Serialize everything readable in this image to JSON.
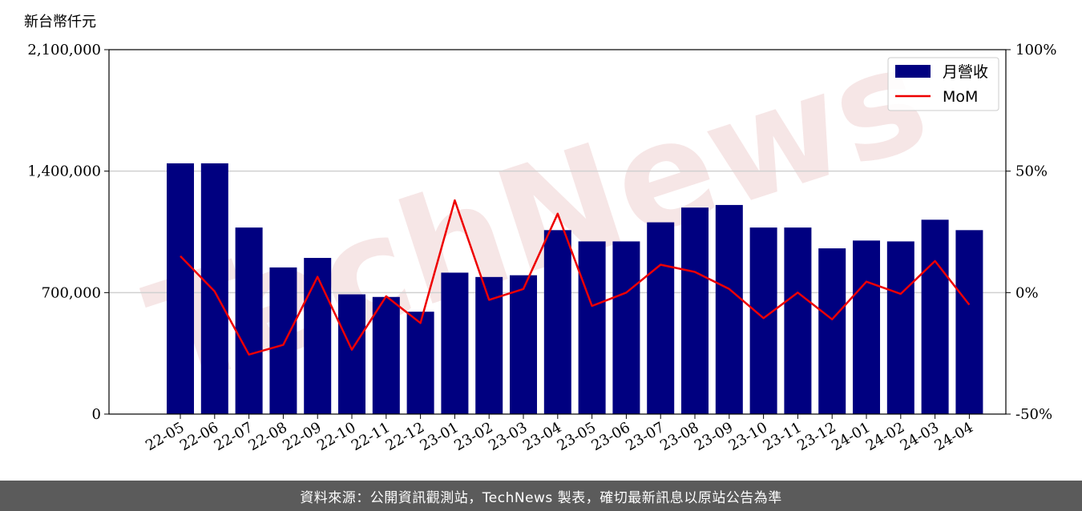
{
  "unit_label": "新台幣仟元",
  "footer": {
    "text": "資料來源：公開資訊觀測站，TechNews 製表，確切最新訊息以原站公告為準"
  },
  "watermark": "TechNews",
  "colors": {
    "bar": "#000080",
    "line": "#ee0000",
    "grid": "#d0d0d0",
    "footer_bg": "#5b5b5b",
    "watermark": "#f4dede"
  },
  "chart_data": {
    "type": "bar",
    "title": "",
    "categories": [
      "22-05",
      "22-06",
      "22-07",
      "22-08",
      "22-09",
      "22-10",
      "22-11",
      "22-12",
      "23-01",
      "23-02",
      "23-03",
      "23-04",
      "23-05",
      "23-06",
      "23-07",
      "23-08",
      "23-09",
      "23-10",
      "23-11",
      "23-12",
      "24-01",
      "24-02",
      "24-03",
      "24-04"
    ],
    "series": [
      {
        "name": "月營收",
        "type": "bar",
        "axis": "left",
        "values": [
          1445000,
          1445000,
          1075000,
          845000,
          900000,
          690000,
          675000,
          590000,
          815000,
          790000,
          800000,
          1060000,
          995000,
          995000,
          1105000,
          1190000,
          1205000,
          1075000,
          1075000,
          955000,
          1000000,
          995000,
          1120000,
          1060000
        ]
      },
      {
        "name": "MoM",
        "type": "line",
        "axis": "right",
        "values": [
          15,
          0.5,
          -25.5,
          -21.5,
          6.5,
          -23.5,
          -1.5,
          -12.5,
          38,
          -3,
          1.5,
          32.5,
          -5.5,
          0,
          11.5,
          8.5,
          1.5,
          -10.5,
          0,
          -11,
          4.5,
          -0.5,
          13,
          -5
        ]
      }
    ],
    "y_left": {
      "label": "新台幣仟元",
      "lim": [
        0,
        2100000
      ],
      "ticks": [
        0,
        700000,
        1400000,
        2100000
      ],
      "tick_labels": [
        "0",
        "700,000",
        "1,400,000",
        "2,100,000"
      ]
    },
    "y_right": {
      "lim": [
        -50,
        100
      ],
      "ticks": [
        -50,
        0,
        50,
        100
      ],
      "tick_labels": [
        "-50%",
        "0%",
        "50%",
        "100%"
      ]
    },
    "grid": "horizontal",
    "legend": {
      "position": "top-right",
      "entries": [
        "月營收",
        "MoM"
      ]
    }
  }
}
